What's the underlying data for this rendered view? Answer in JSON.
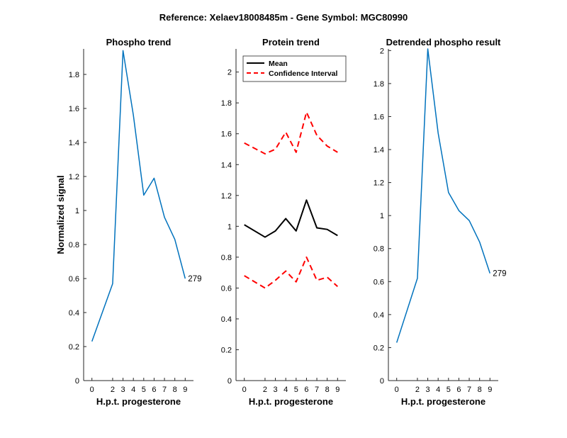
{
  "figure": {
    "suptitle": "Reference:  Xelaev18008485m - Gene Symbol:  MGC80990"
  },
  "chart_data": [
    {
      "type": "line",
      "title": "Phospho trend",
      "xlabel": "H.p.t. progesterone",
      "ylabel": "Normalized signal",
      "x": [
        0,
        2,
        3,
        4,
        5,
        6,
        7,
        8,
        9
      ],
      "xticks": [
        "0",
        "2",
        "3",
        "4",
        "5",
        "6",
        "7",
        "8",
        "9"
      ],
      "ylim": [
        0,
        1.95
      ],
      "yticks": [
        "0",
        "0.2",
        "0.4",
        "0.6",
        "0.8",
        "1",
        "1.2",
        "1.4",
        "1.6",
        "1.8"
      ],
      "series": [
        {
          "values": [
            0.23,
            0.57,
            1.94,
            1.56,
            1.09,
            1.19,
            0.96,
            0.83,
            0.6
          ],
          "color": "#0072BD",
          "style": "solid"
        }
      ],
      "annotation": "279",
      "grid": false,
      "legend": null
    },
    {
      "type": "line",
      "title": "Protein trend",
      "xlabel": "H.p.t. progesterone",
      "ylabel": "",
      "x": [
        0,
        2,
        3,
        4,
        5,
        6,
        7,
        8,
        9
      ],
      "xticks": [
        "0",
        "2",
        "3",
        "4",
        "5",
        "6",
        "7",
        "8",
        "9"
      ],
      "ylim": [
        0,
        2.15
      ],
      "yticks": [
        "0",
        "0.2",
        "0.4",
        "0.6",
        "0.8",
        "1",
        "1.2",
        "1.4",
        "1.6",
        "1.8",
        "2"
      ],
      "series": [
        {
          "name": "Mean",
          "values": [
            1.01,
            0.93,
            0.97,
            1.05,
            0.97,
            1.17,
            0.99,
            0.98,
            0.94
          ],
          "color": "#000000",
          "style": "solid"
        },
        {
          "name": "Confidence Interval",
          "values": [
            1.54,
            1.47,
            1.5,
            1.61,
            1.48,
            1.74,
            1.59,
            1.52,
            1.48
          ],
          "color": "#FF0000",
          "style": "dashed"
        },
        {
          "values": [
            0.68,
            0.6,
            0.65,
            0.71,
            0.64,
            0.8,
            0.65,
            0.67,
            0.61
          ],
          "color": "#FF0000",
          "style": "dashed"
        }
      ],
      "grid": false,
      "legend": "top"
    },
    {
      "type": "line",
      "title": "Detrended phospho result",
      "xlabel": "H.p.t. progesterone",
      "ylabel": "",
      "x": [
        0,
        2,
        3,
        4,
        5,
        6,
        7,
        8,
        9
      ],
      "xticks": [
        "0",
        "2",
        "3",
        "4",
        "5",
        "6",
        "7",
        "8",
        "9"
      ],
      "ylim": [
        0,
        2.01
      ],
      "yticks": [
        "0",
        "0.2",
        "0.4",
        "0.6",
        "0.8",
        "1",
        "1.2",
        "1.4",
        "1.6",
        "1.8",
        "2"
      ],
      "series": [
        {
          "values": [
            0.23,
            0.62,
            2.01,
            1.5,
            1.14,
            1.03,
            0.97,
            0.84,
            0.65
          ],
          "color": "#0072BD",
          "style": "solid"
        }
      ],
      "annotation": "279",
      "grid": false,
      "legend": null
    }
  ]
}
